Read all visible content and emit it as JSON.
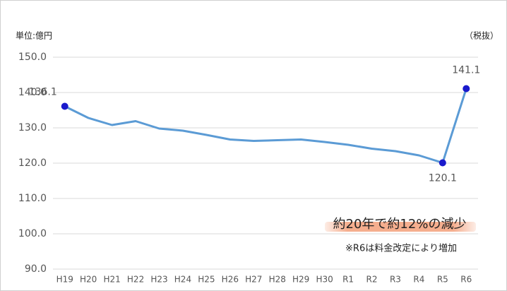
{
  "chart_data": {
    "type": "line",
    "unit_label": "単位:億円",
    "tax_note": "（税抜）",
    "annotations": [
      "約20年で約12%の減少",
      "※R6は料金改定により増加"
    ],
    "categories": [
      "H19",
      "H20",
      "H21",
      "H22",
      "H23",
      "H24",
      "H25",
      "H26",
      "H27",
      "H28",
      "H29",
      "H30",
      "R1",
      "R2",
      "R3",
      "R4",
      "R5",
      "R6"
    ],
    "series": [
      {
        "color": "#5b9bd5",
        "marker_color": "#1a1acc",
        "values": [
          136.1,
          132.8,
          130.8,
          131.9,
          129.8,
          129.2,
          128.0,
          126.7,
          126.3,
          126.5,
          126.7,
          126.0,
          125.2,
          124.1,
          123.4,
          122.2,
          120.1,
          141.1
        ],
        "value_labels": [
          "136.1",
          null,
          null,
          null,
          null,
          null,
          null,
          null,
          null,
          null,
          null,
          null,
          null,
          null,
          null,
          null,
          "120.1",
          "141.1"
        ]
      }
    ],
    "ylim": [
      90,
      150
    ],
    "yticks": [
      {
        "value": 90,
        "label": "90.0"
      },
      {
        "value": 100,
        "label": "100.0"
      },
      {
        "value": 110,
        "label": "110.0"
      },
      {
        "value": 120,
        "label": "120.0"
      },
      {
        "value": 130,
        "label": "130.0"
      },
      {
        "value": 140,
        "label": "140.0"
      },
      {
        "value": 150,
        "label": "150.0"
      }
    ],
    "grid": true
  }
}
